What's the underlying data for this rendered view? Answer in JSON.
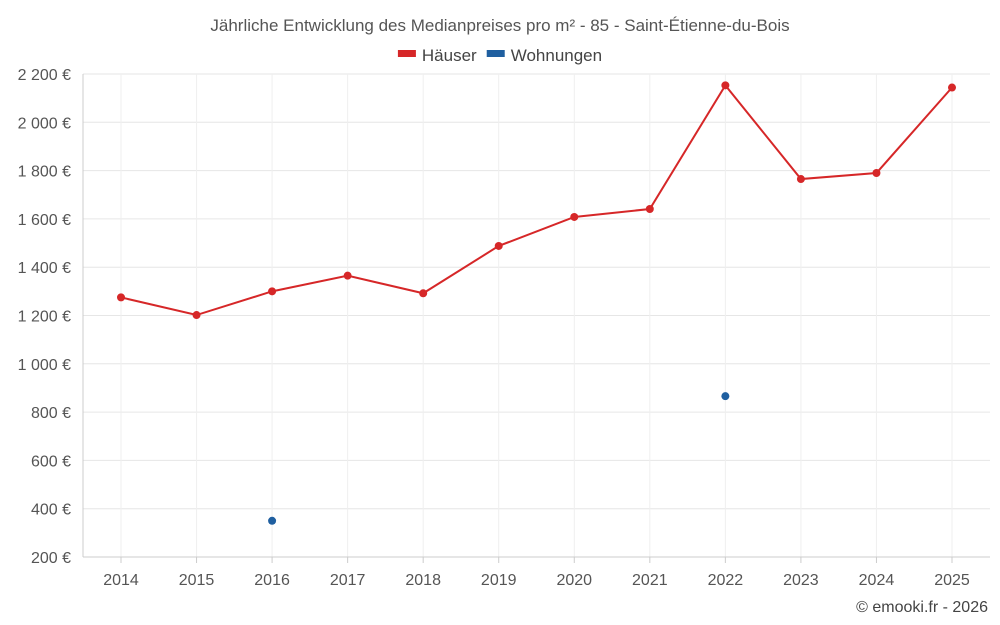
{
  "chart_data": {
    "type": "line",
    "title": "Jährliche Entwicklung des Medianpreises pro m² - 85 - Saint-Étienne-du-Bois",
    "categories": [
      "2014",
      "2015",
      "2016",
      "2017",
      "2018",
      "2019",
      "2020",
      "2021",
      "2022",
      "2023",
      "2024",
      "2025"
    ],
    "y_ticks": [
      200,
      400,
      600,
      800,
      1000,
      1200,
      1400,
      1600,
      1800,
      2000,
      2200
    ],
    "y_tick_labels": [
      "200 €",
      "400 €",
      "600 €",
      "800 €",
      "1 000 €",
      "1 200 €",
      "1 400 €",
      "1 600 €",
      "1 800 €",
      "2 000 €",
      "2 200 €"
    ],
    "ylim": [
      200,
      2200
    ],
    "grid": true,
    "legend_position": "top-center",
    "series": [
      {
        "name": "Häuser",
        "color": "#d62728",
        "values": [
          1275,
          1202,
          1300,
          1365,
          1292,
          1488,
          1608,
          1641,
          2153,
          1765,
          1790,
          2144
        ]
      },
      {
        "name": "Wohnungen",
        "color": "#1f5fa0",
        "values": [
          null,
          null,
          350,
          null,
          null,
          null,
          null,
          null,
          866,
          null,
          null,
          null
        ]
      }
    ]
  },
  "credit": "© emooki.fr - 2026"
}
